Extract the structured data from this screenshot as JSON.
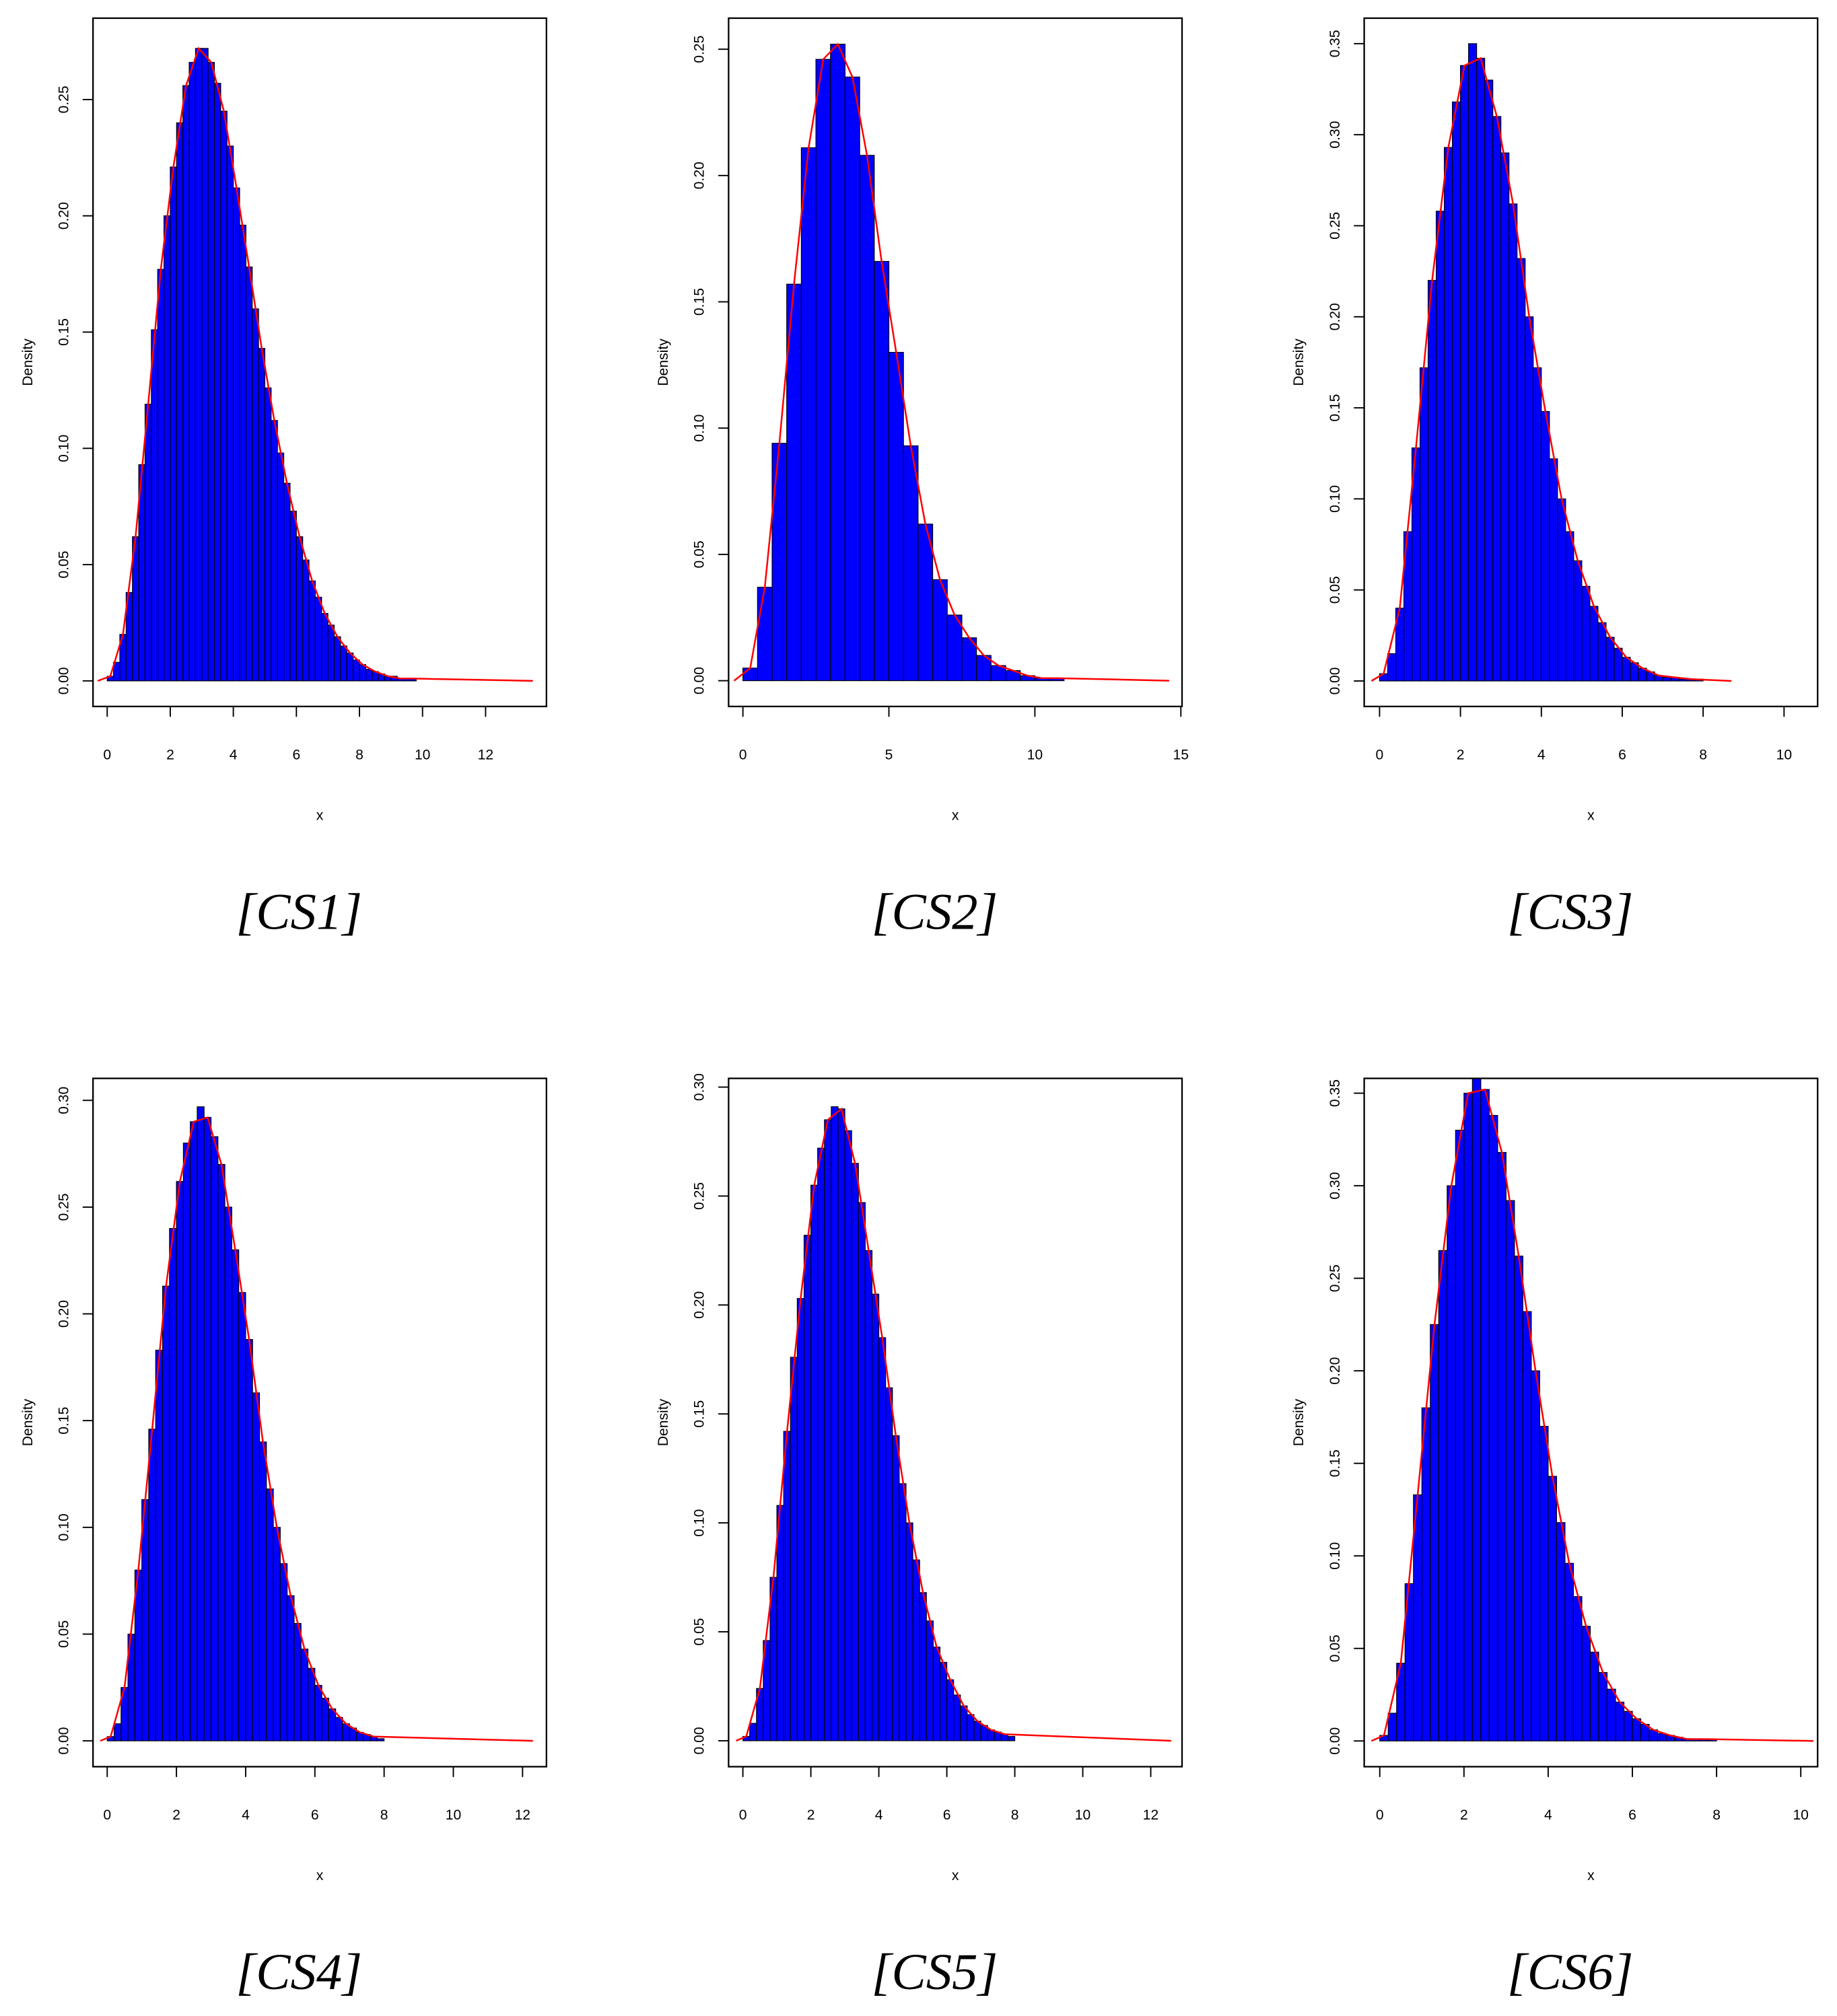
{
  "chart_data": [
    {
      "type": "histogram",
      "caption": "[CS1]",
      "xlabel": "x",
      "ylabel": "Density",
      "color": "#0000ff",
      "bins": [
        0,
        0.2,
        0.4,
        0.6,
        0.8,
        1,
        1.2,
        1.4,
        1.6,
        1.8,
        2,
        2.2,
        2.4,
        2.6,
        2.8,
        3,
        3.2,
        3.4,
        3.6,
        3.8,
        4,
        4.2,
        4.4,
        4.6,
        4.8,
        5,
        5.2,
        5.4,
        5.6,
        5.8,
        6,
        6.2,
        6.4,
        6.6,
        6.8,
        7,
        7.2,
        7.4,
        7.6,
        7.8,
        8,
        8.2,
        8.4,
        8.6,
        8.8,
        9,
        9.2,
        9.4,
        9.6,
        9.8,
        10
      ],
      "values": [
        0.002,
        0.008,
        0.02,
        0.038,
        0.062,
        0.093,
        0.119,
        0.151,
        0.177,
        0.2,
        0.221,
        0.24,
        0.256,
        0.266,
        0.272,
        0.272,
        0.266,
        0.257,
        0.245,
        0.23,
        0.212,
        0.196,
        0.178,
        0.16,
        0.143,
        0.126,
        0.112,
        0.098,
        0.085,
        0.073,
        0.062,
        0.052,
        0.043,
        0.036,
        0.029,
        0.024,
        0.019,
        0.015,
        0.012,
        0.009,
        0.007,
        0.005,
        0.004,
        0.003,
        0.002,
        0.002,
        0.001,
        0.001,
        0.001,
        0
      ],
      "curve": {
        "color": "#ff0000",
        "x": [
          -0.3,
          0.1,
          0.5,
          0.9,
          1.3,
          1.7,
          2.1,
          2.5,
          2.9,
          3.3,
          3.7,
          4.1,
          4.5,
          4.9,
          5.3,
          5.7,
          6.1,
          6.5,
          6.9,
          7.3,
          7.7,
          8.1,
          8.5,
          8.9,
          9.3,
          9.7,
          13.5
        ],
        "values": [
          0,
          0.002,
          0.02,
          0.062,
          0.119,
          0.177,
          0.221,
          0.256,
          0.272,
          0.266,
          0.245,
          0.212,
          0.178,
          0.143,
          0.112,
          0.085,
          0.062,
          0.043,
          0.029,
          0.019,
          0.012,
          0.007,
          0.004,
          0.002,
          0.001,
          0.001,
          0
        ]
      },
      "xlim": [
        -0.45,
        13.93
      ],
      "ylim": [
        -0.011,
        0.285
      ],
      "xticks": [
        0,
        2,
        4,
        6,
        8,
        10,
        12
      ],
      "yticks": [
        {
          "value": 0,
          "label": "0.00"
        },
        0.05,
        {
          "value": 0.1,
          "label": "0.10"
        },
        0.15,
        {
          "value": 0.2,
          "label": "0.20"
        },
        0.25
      ]
    },
    {
      "type": "histogram",
      "caption": "[CS2]",
      "xlabel": "x",
      "ylabel": "Density",
      "color": "#0000ff",
      "bins": [
        0,
        0.5,
        1,
        1.5,
        2,
        2.5,
        3,
        3.5,
        4,
        4.5,
        5,
        5.5,
        6,
        6.5,
        7,
        7.5,
        8,
        8.5,
        9,
        9.5,
        10,
        10.5,
        11
      ],
      "values": [
        0.005,
        0.037,
        0.094,
        0.157,
        0.211,
        0.246,
        0.252,
        0.239,
        0.208,
        0.166,
        0.13,
        0.093,
        0.062,
        0.04,
        0.026,
        0.017,
        0.01,
        0.006,
        0.004,
        0.002,
        0.001,
        0.001
      ],
      "curve": {
        "color": "#ff0000",
        "x": [
          -0.3,
          0.25,
          0.75,
          1.25,
          1.75,
          2.25,
          2.75,
          3.25,
          3.75,
          4.25,
          4.75,
          5.25,
          5.75,
          6.25,
          6.75,
          7.25,
          7.75,
          8.25,
          8.75,
          9.25,
          9.75,
          10.25,
          10.75,
          14.6
        ],
        "values": [
          0,
          0.005,
          0.037,
          0.094,
          0.157,
          0.211,
          0.246,
          0.252,
          0.239,
          0.208,
          0.166,
          0.13,
          0.093,
          0.062,
          0.04,
          0.026,
          0.017,
          0.01,
          0.006,
          0.004,
          0.002,
          0.001,
          0.001,
          0
        ]
      },
      "xlim": [
        -0.49,
        15.04
      ],
      "ylim": [
        -0.0102,
        0.2623
      ],
      "xticks": [
        0,
        5,
        10,
        15
      ],
      "yticks": [
        {
          "value": 0,
          "label": "0.00"
        },
        0.05,
        {
          "value": 0.1,
          "label": "0.10"
        },
        0.15,
        {
          "value": 0.2,
          "label": "0.20"
        },
        0.25
      ]
    },
    {
      "type": "histogram",
      "caption": "[CS3]",
      "xlabel": "x",
      "ylabel": "Density",
      "color": "#0000ff",
      "bins": [
        0,
        0.2,
        0.4,
        0.6,
        0.8,
        1,
        1.2,
        1.4,
        1.6,
        1.8,
        2,
        2.2,
        2.4,
        2.6,
        2.8,
        3,
        3.2,
        3.4,
        3.6,
        3.8,
        4,
        4.2,
        4.4,
        4.6,
        4.8,
        5,
        5.2,
        5.4,
        5.6,
        5.8,
        6,
        6.2,
        6.4,
        6.6,
        6.8,
        7,
        7.2,
        7.4,
        7.6,
        7.8,
        8
      ],
      "values": [
        0.004,
        0.015,
        0.04,
        0.082,
        0.128,
        0.172,
        0.22,
        0.258,
        0.293,
        0.318,
        0.338,
        0.35,
        0.342,
        0.33,
        0.31,
        0.29,
        0.262,
        0.232,
        0.2,
        0.172,
        0.148,
        0.122,
        0.1,
        0.082,
        0.066,
        0.052,
        0.041,
        0.032,
        0.024,
        0.018,
        0.013,
        0.01,
        0.007,
        0.005,
        0.003,
        0.002,
        0.002,
        0.001,
        0.001,
        0.001
      ],
      "curve": {
        "color": "#ff0000",
        "x": [
          -0.2,
          0.1,
          0.5,
          0.9,
          1.3,
          1.7,
          2.1,
          2.5,
          2.9,
          3.3,
          3.7,
          4.1,
          4.5,
          4.9,
          5.3,
          5.7,
          6.1,
          6.5,
          6.9,
          7.3,
          7.7,
          8.7
        ],
        "values": [
          0,
          0.004,
          0.04,
          0.128,
          0.22,
          0.293,
          0.338,
          0.342,
          0.31,
          0.262,
          0.2,
          0.148,
          0.1,
          0.066,
          0.041,
          0.024,
          0.013,
          0.007,
          0.003,
          0.002,
          0.001,
          0
        ]
      },
      "xlim": [
        -0.38,
        10.83
      ],
      "ylim": [
        -0.014,
        0.364
      ],
      "xticks": [
        0,
        2,
        4,
        6,
        8,
        10
      ],
      "yticks": [
        {
          "value": 0,
          "label": "0.00"
        },
        0.05,
        {
          "value": 0.1,
          "label": "0.10"
        },
        0.15,
        {
          "value": 0.2,
          "label": "0.20"
        },
        0.25,
        {
          "value": 0.3,
          "label": "0.30"
        },
        0.35
      ]
    },
    {
      "type": "histogram",
      "caption": "[CS4]",
      "xlabel": "x",
      "ylabel": "Density",
      "color": "#0000ff",
      "bins": [
        0,
        0.2,
        0.4,
        0.6,
        0.8,
        1,
        1.2,
        1.4,
        1.6,
        1.8,
        2,
        2.2,
        2.4,
        2.6,
        2.8,
        3,
        3.2,
        3.4,
        3.6,
        3.8,
        4,
        4.2,
        4.4,
        4.6,
        4.8,
        5,
        5.2,
        5.4,
        5.6,
        5.8,
        6,
        6.2,
        6.4,
        6.6,
        6.8,
        7,
        7.2,
        7.4,
        7.6,
        7.8,
        8
      ],
      "values": [
        0.002,
        0.008,
        0.025,
        0.05,
        0.08,
        0.113,
        0.146,
        0.183,
        0.213,
        0.24,
        0.262,
        0.28,
        0.29,
        0.297,
        0.292,
        0.283,
        0.27,
        0.25,
        0.23,
        0.21,
        0.188,
        0.163,
        0.14,
        0.118,
        0.1,
        0.083,
        0.068,
        0.055,
        0.043,
        0.034,
        0.026,
        0.02,
        0.015,
        0.011,
        0.008,
        0.006,
        0.004,
        0.003,
        0.002,
        0.001
      ],
      "curve": {
        "color": "#ff0000",
        "x": [
          -0.2,
          0.1,
          0.5,
          0.9,
          1.3,
          1.7,
          2.1,
          2.5,
          2.9,
          3.3,
          3.7,
          4.1,
          4.5,
          4.9,
          5.3,
          5.7,
          6.1,
          6.5,
          6.9,
          7.3,
          7.7,
          12.3
        ],
        "values": [
          0,
          0.002,
          0.025,
          0.08,
          0.146,
          0.213,
          0.262,
          0.29,
          0.292,
          0.27,
          0.23,
          0.188,
          0.14,
          0.1,
          0.068,
          0.043,
          0.026,
          0.015,
          0.008,
          0.004,
          0.002,
          0
        ]
      },
      "xlim": [
        -0.41,
        12.69
      ],
      "ylim": [
        -0.0121,
        0.3103
      ],
      "xticks": [
        0,
        2,
        4,
        6,
        8,
        10,
        12
      ],
      "yticks": [
        {
          "value": 0,
          "label": "0.00"
        },
        0.05,
        {
          "value": 0.1,
          "label": "0.10"
        },
        0.15,
        {
          "value": 0.2,
          "label": "0.20"
        },
        0.25,
        {
          "value": 0.3,
          "label": "0.30"
        }
      ]
    },
    {
      "type": "histogram",
      "caption": "[CS5]",
      "xlabel": "x",
      "ylabel": "Density",
      "color": "#0000ff",
      "bins": [
        0,
        0.2,
        0.4,
        0.6,
        0.8,
        1,
        1.2,
        1.4,
        1.6,
        1.8,
        2,
        2.2,
        2.4,
        2.6,
        2.8,
        3,
        3.2,
        3.4,
        3.6,
        3.8,
        4,
        4.2,
        4.4,
        4.6,
        4.8,
        5,
        5.2,
        5.4,
        5.6,
        5.8,
        6,
        6.2,
        6.4,
        6.6,
        6.8,
        7,
        7.2,
        7.4,
        7.6,
        7.8,
        8
      ],
      "values": [
        0.002,
        0.008,
        0.024,
        0.046,
        0.075,
        0.108,
        0.142,
        0.176,
        0.203,
        0.232,
        0.255,
        0.272,
        0.285,
        0.291,
        0.29,
        0.28,
        0.265,
        0.247,
        0.225,
        0.205,
        0.185,
        0.162,
        0.14,
        0.118,
        0.1,
        0.083,
        0.068,
        0.055,
        0.043,
        0.036,
        0.028,
        0.021,
        0.016,
        0.012,
        0.009,
        0.007,
        0.005,
        0.004,
        0.003,
        0.002
      ],
      "curve": {
        "color": "#ff0000",
        "x": [
          -0.2,
          0.1,
          0.5,
          0.9,
          1.3,
          1.7,
          2.1,
          2.5,
          2.9,
          3.3,
          3.7,
          4.1,
          4.5,
          4.9,
          5.3,
          5.7,
          6.1,
          6.5,
          6.9,
          7.3,
          7.7,
          12.6
        ],
        "values": [
          0,
          0.002,
          0.024,
          0.075,
          0.142,
          0.203,
          0.255,
          0.285,
          0.29,
          0.265,
          0.225,
          0.185,
          0.14,
          0.1,
          0.068,
          0.043,
          0.028,
          0.016,
          0.009,
          0.005,
          0.003,
          0
        ]
      },
      "xlim": [
        -0.42,
        12.92
      ],
      "ylim": [
        -0.0119,
        0.304
      ],
      "xticks": [
        0,
        2,
        4,
        6,
        8,
        10,
        12
      ],
      "yticks": [
        {
          "value": 0,
          "label": "0.00"
        },
        0.05,
        {
          "value": 0.1,
          "label": "0.10"
        },
        0.15,
        {
          "value": 0.2,
          "label": "0.20"
        },
        0.25,
        {
          "value": 0.3,
          "label": "0.30"
        }
      ]
    },
    {
      "type": "histogram",
      "caption": "[CS6]",
      "xlabel": "x",
      "ylabel": "Density",
      "color": "#0000ff",
      "bins": [
        0,
        0.2,
        0.4,
        0.6,
        0.8,
        1,
        1.2,
        1.4,
        1.6,
        1.8,
        2,
        2.2,
        2.4,
        2.6,
        2.8,
        3,
        3.2,
        3.4,
        3.6,
        3.8,
        4,
        4.2,
        4.4,
        4.6,
        4.8,
        5,
        5.2,
        5.4,
        5.6,
        5.8,
        6,
        6.2,
        6.4,
        6.6,
        6.8,
        7,
        7.2,
        7.4,
        7.6,
        7.8,
        8
      ],
      "values": [
        0.003,
        0.015,
        0.042,
        0.085,
        0.133,
        0.18,
        0.225,
        0.265,
        0.3,
        0.33,
        0.35,
        0.358,
        0.352,
        0.338,
        0.318,
        0.292,
        0.262,
        0.232,
        0.2,
        0.17,
        0.143,
        0.118,
        0.096,
        0.078,
        0.062,
        0.048,
        0.037,
        0.028,
        0.021,
        0.016,
        0.012,
        0.009,
        0.006,
        0.004,
        0.003,
        0.002,
        0.001,
        0.001,
        0.001,
        0.001
      ],
      "curve": {
        "color": "#ff0000",
        "x": [
          -0.2,
          0.1,
          0.5,
          0.9,
          1.3,
          1.7,
          2.1,
          2.5,
          2.9,
          3.3,
          3.7,
          4.1,
          4.5,
          4.9,
          5.3,
          5.7,
          6.1,
          6.5,
          6.9,
          7.3,
          7.7,
          10.3
        ],
        "values": [
          0,
          0.003,
          0.042,
          0.133,
          0.225,
          0.3,
          0.35,
          0.352,
          0.318,
          0.262,
          0.2,
          0.143,
          0.096,
          0.062,
          0.037,
          0.021,
          0.012,
          0.006,
          0.003,
          0.001,
          0.001,
          0
        ]
      },
      "xlim": [
        -0.37,
        10.4
      ],
      "ylim": [
        -0.0139,
        0.358
      ],
      "xticks": [
        0,
        2,
        4,
        6,
        8,
        10
      ],
      "yticks": [
        {
          "value": 0,
          "label": "0.00"
        },
        0.05,
        {
          "value": 0.1,
          "label": "0.10"
        },
        0.15,
        {
          "value": 0.2,
          "label": "0.20"
        },
        0.25,
        {
          "value": 0.3,
          "label": "0.30"
        },
        0.35
      ]
    }
  ]
}
